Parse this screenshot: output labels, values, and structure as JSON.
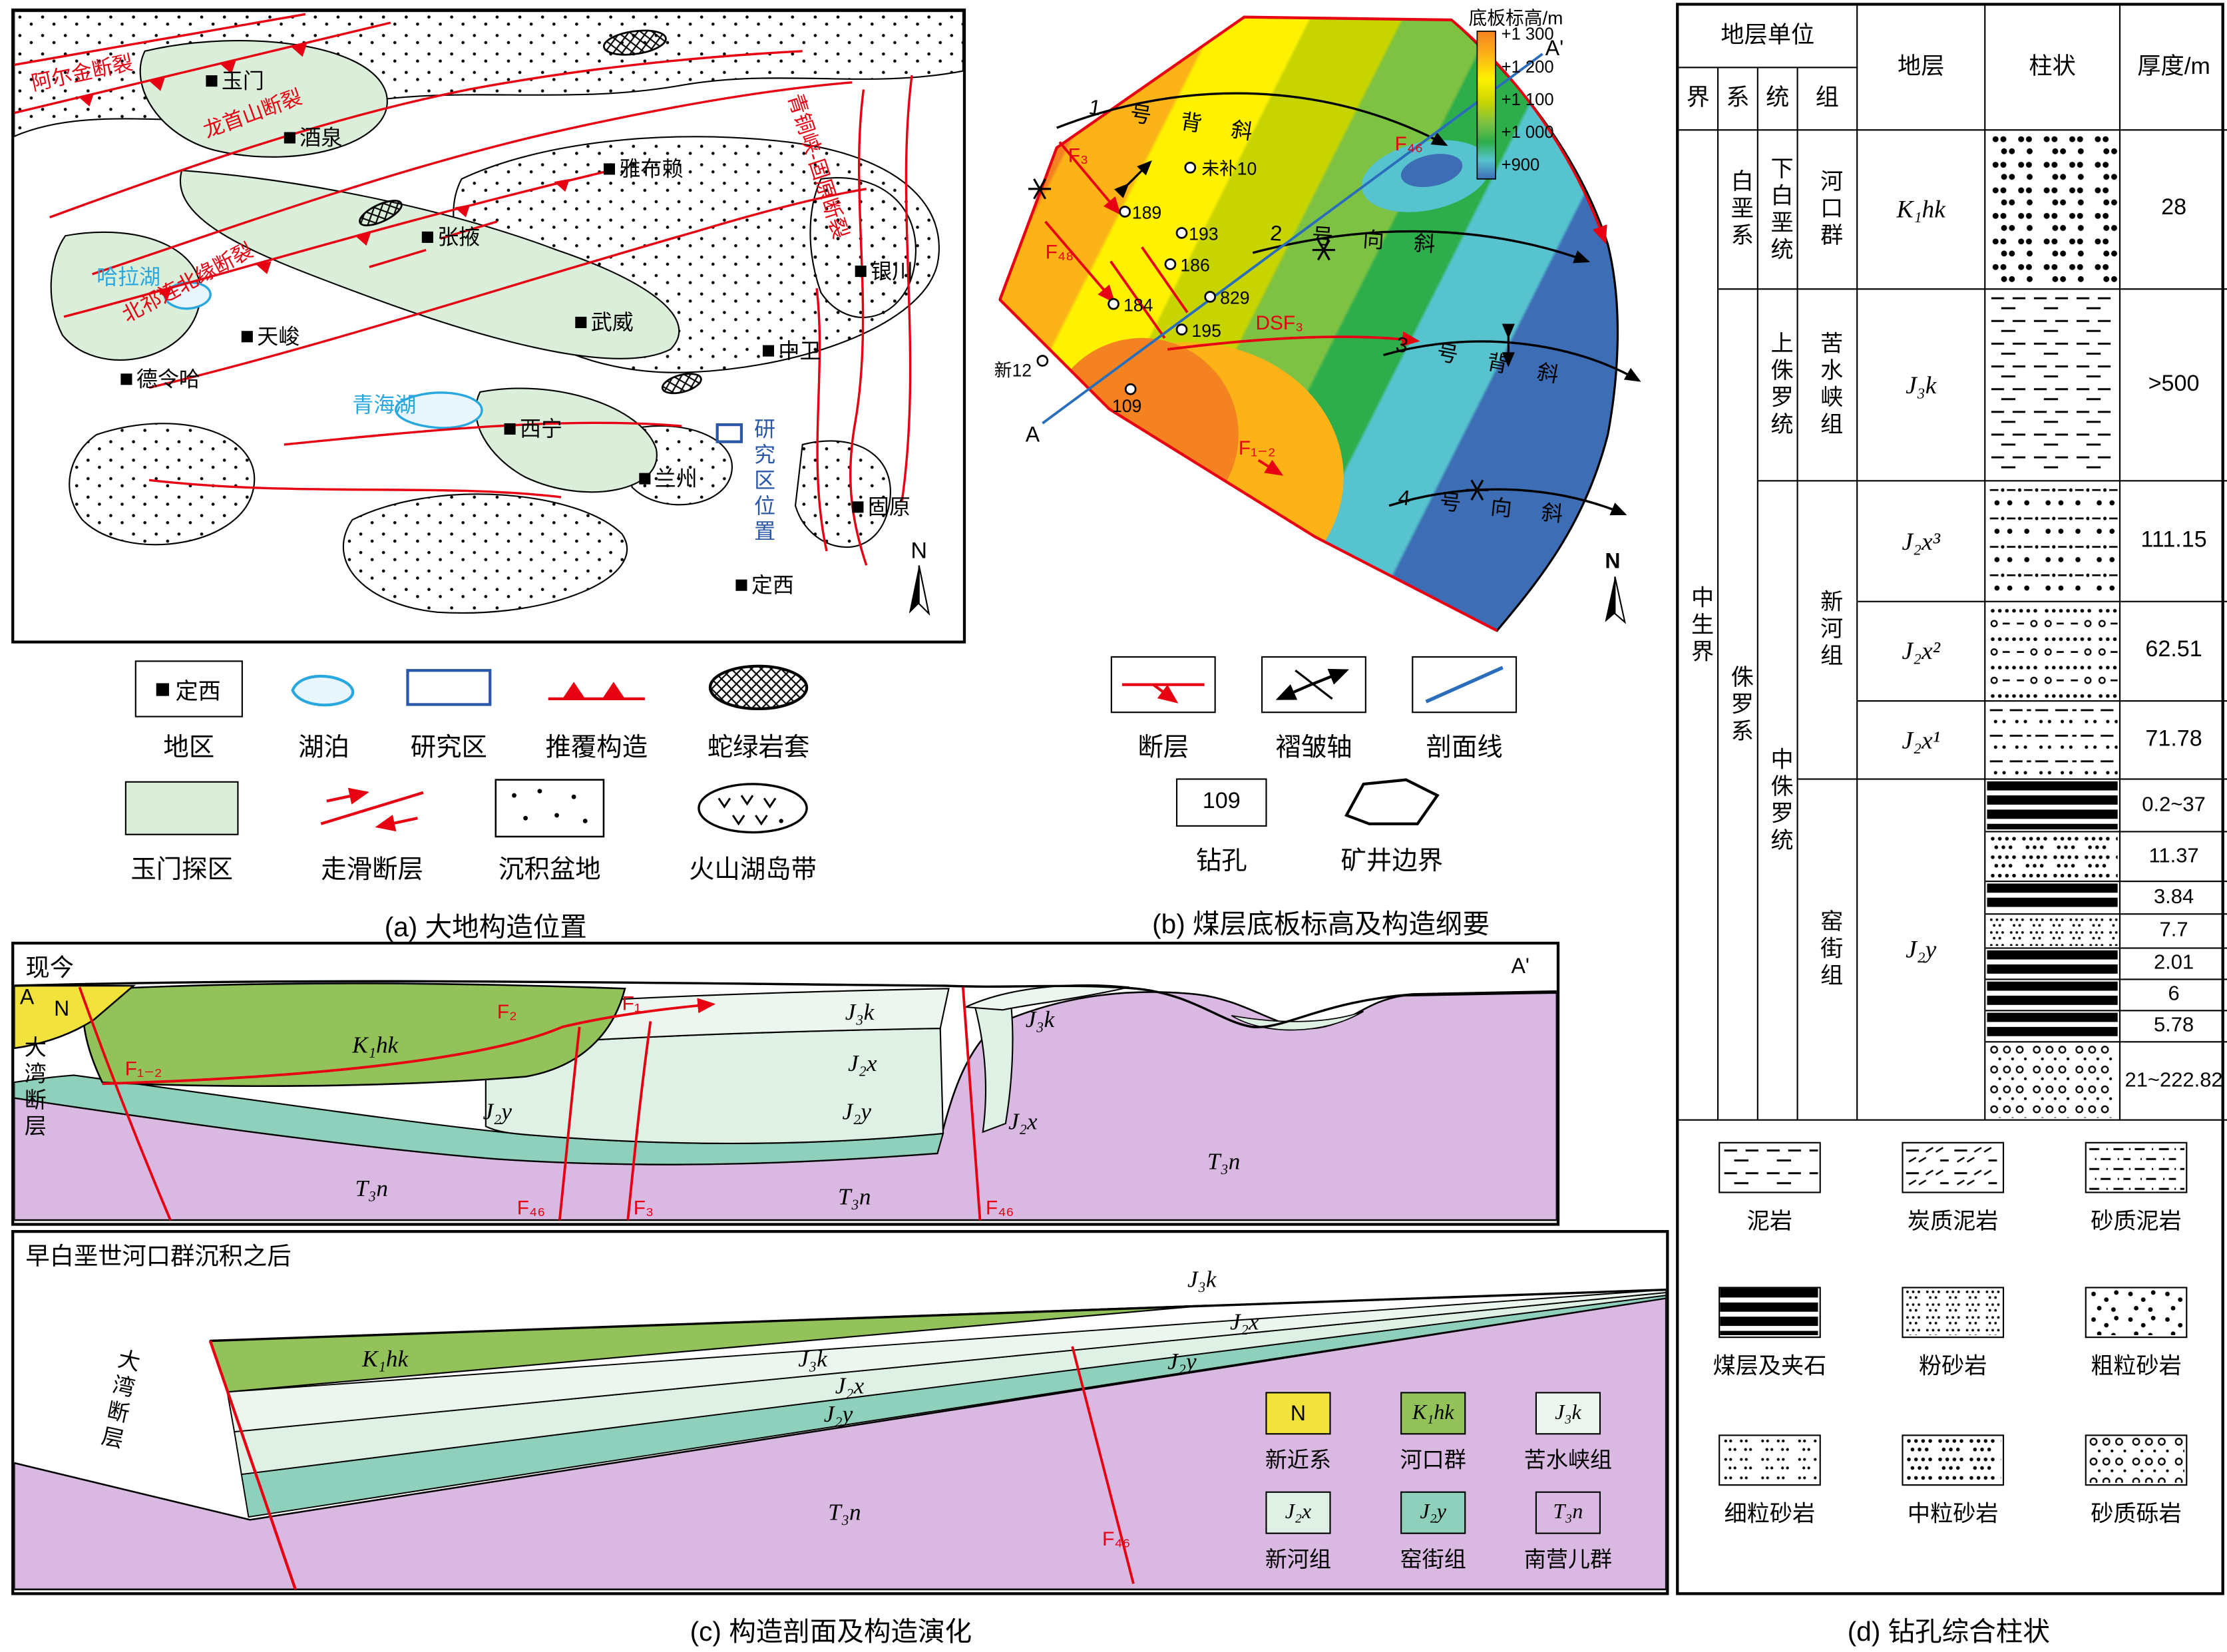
{
  "figure": {
    "captions": {
      "a": "(a) 大地构造位置",
      "b": "(b) 煤层底板标高及构造纲要",
      "c": "(c) 构造剖面及构造演化",
      "d": "(d) 钻孔综合柱状"
    }
  },
  "panel_a": {
    "compass": "N",
    "cities": [
      "玉门",
      "酒泉",
      "雅布赖",
      "张掖",
      "武威",
      "银川",
      "德令哈",
      "天峻",
      "中卫",
      "西宁",
      "兰州",
      "固原",
      "定西"
    ],
    "lakes": [
      "哈拉湖",
      "青海湖"
    ],
    "faults": [
      "阿尔金断裂",
      "龙首山断裂",
      "北祁连北缘断裂",
      "青铜峡-固原断裂"
    ],
    "study_area": "研究区位置",
    "legend": {
      "region_symbol": "定西",
      "region": "地区",
      "lake": "湖泊",
      "study": "研究区",
      "thrust": "推覆构造",
      "ophiolite": "蛇绿岩套",
      "yumen": "玉门探区",
      "strike_slip": "走滑断层",
      "basin": "沉积盆地",
      "volcanic": "火山湖岛带"
    }
  },
  "panel_b": {
    "colorbar": {
      "title": "底板标高/m",
      "ticks": [
        "+1 300",
        "+1 200",
        "+1 100",
        "+1 000",
        "+900"
      ]
    },
    "section": {
      "start": "A",
      "end": "A'"
    },
    "folds": [
      "1号背斜",
      "2号向斜",
      "3号背斜",
      "4号向斜"
    ],
    "faults": [
      "F₃",
      "F₄₈",
      "F₄₆",
      "DSF₃",
      "F₁₋₂"
    ],
    "boreholes": [
      "未补10",
      "189",
      "193",
      "186",
      "829",
      "184",
      "195",
      "109",
      "新12"
    ],
    "compass": "N",
    "legend": {
      "fault": "断层",
      "fold_axis": "褶皱轴",
      "section_line": "剖面线",
      "borehole_symbol": "109",
      "borehole": "钻孔",
      "boundary": "矿井边界"
    }
  },
  "panel_c": {
    "s1": {
      "title": "现今",
      "a": "A",
      "n": "N",
      "a2": "A'",
      "fault_zone": "大湾断层",
      "faults": {
        "f12": "F₁₋₂",
        "f2": "F₂",
        "f1": "F₁",
        "f46m": "F₄₆",
        "f3": "F₃",
        "f46r": "F₄₆"
      },
      "units": {
        "k1hk": "K₁hk",
        "j2y_left": "J₂y",
        "j3k_mid": "J₃k",
        "j2x_mid": "J₂x",
        "j2y_mid": "J₂y",
        "t3n_left": "T₃n",
        "t3n_mid": "T₃n",
        "j3k_right": "J₃k",
        "j2x_right": "J₂x",
        "t3n_right": "T₃n"
      }
    },
    "s2": {
      "title": "早白垩世河口群沉积之后",
      "fault_zone": "大湾断层",
      "fault": "F₄₆",
      "units": {
        "k1hk": "K₁hk",
        "j3k": "J₃k",
        "j2x": "J₂x",
        "j2y": "J₂y",
        "t3n": "T₃n",
        "j3k_r": "J₃k",
        "j2x_r": "J₂x",
        "j2y_r": "J₂y"
      }
    },
    "legend": [
      {
        "sym": "N",
        "name": "新近系"
      },
      {
        "sym": "K₁hk",
        "name": "河口群"
      },
      {
        "sym": "J₃k",
        "name": "苦水峡组"
      },
      {
        "sym": "J₂x",
        "name": "新河组"
      },
      {
        "sym": "J₂y",
        "name": "窑街组"
      },
      {
        "sym": "T₃n",
        "name": "南营儿群"
      }
    ]
  },
  "panel_d": {
    "header": {
      "unit": "地层单位",
      "era": "界",
      "system": "系",
      "series": "统",
      "formation": "组",
      "strata": "地层",
      "column": "柱状",
      "thickness": "厚度/m"
    },
    "era": "中生界",
    "systems": [
      "白垩系",
      "侏罗系"
    ],
    "series": [
      "下白垩统",
      "上侏罗统",
      "中侏罗统"
    ],
    "formations": [
      "河口群",
      "苦水峡组",
      "新河组",
      "窑街组"
    ],
    "strata": [
      "K₁hk",
      "J₃k",
      "J₂x³",
      "J₂x²",
      "J₂x¹",
      "J₂y"
    ],
    "thickness": [
      "28",
      ">500",
      "111.15",
      "62.51",
      "71.78"
    ],
    "j2y_thickness": [
      "0.2~37",
      "11.37",
      "3.84",
      "7.7",
      "2.01",
      "6",
      "5.78",
      "21~222.82"
    ],
    "litho_legend": [
      "泥岩",
      "炭质泥岩",
      "砂质泥岩",
      "煤层及夹石",
      "粉砂岩",
      "粗粒砂岩",
      "细粒砂岩",
      "中粒砂岩",
      "砂质砾岩"
    ]
  }
}
